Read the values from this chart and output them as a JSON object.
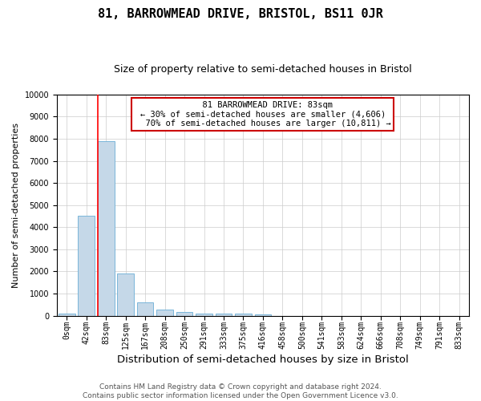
{
  "title": "81, BARROWMEAD DRIVE, BRISTOL, BS11 0JR",
  "subtitle": "Size of property relative to semi-detached houses in Bristol",
  "xlabel": "Distribution of semi-detached houses by size in Bristol",
  "ylabel": "Number of semi-detached properties",
  "property_label": "81 BARROWMEAD DRIVE: 83sqm",
  "smaller_pct": 30,
  "smaller_count": 4606,
  "larger_pct": 70,
  "larger_count": 10811,
  "bin_labels": [
    "0sqm",
    "42sqm",
    "83sqm",
    "125sqm",
    "167sqm",
    "208sqm",
    "250sqm",
    "291sqm",
    "333sqm",
    "375sqm",
    "416sqm",
    "458sqm",
    "500sqm",
    "541sqm",
    "583sqm",
    "624sqm",
    "666sqm",
    "708sqm",
    "749sqm",
    "791sqm",
    "833sqm"
  ],
  "bar_heights": [
    100,
    4500,
    7900,
    1900,
    600,
    280,
    150,
    100,
    80,
    80,
    50,
    0,
    0,
    0,
    0,
    0,
    0,
    0,
    0,
    0,
    0
  ],
  "bar_color": "#c5d8e8",
  "bar_edge_color": "#6aaed6",
  "red_line_bin": 2,
  "ylim": [
    0,
    10000
  ],
  "yticks": [
    0,
    1000,
    2000,
    3000,
    4000,
    5000,
    6000,
    7000,
    8000,
    9000,
    10000
  ],
  "annotation_box_color": "#ffffff",
  "annotation_box_edge": "#cc0000",
  "grid_color": "#cccccc",
  "footnote": "Contains HM Land Registry data © Crown copyright and database right 2024.\nContains public sector information licensed under the Open Government Licence v3.0.",
  "title_fontsize": 11,
  "subtitle_fontsize": 9,
  "xlabel_fontsize": 9.5,
  "ylabel_fontsize": 8,
  "tick_fontsize": 7,
  "annotation_fontsize": 7.5,
  "footnote_fontsize": 6.5
}
